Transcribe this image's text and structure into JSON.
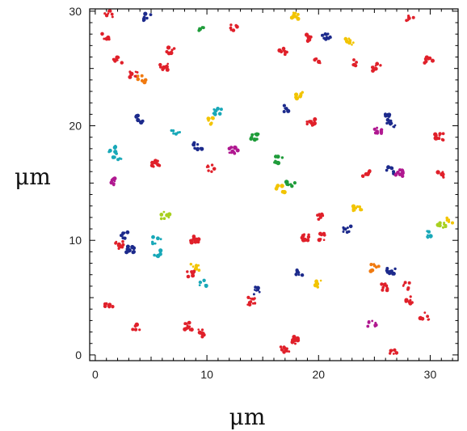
{
  "chart_data": {
    "type": "scatter",
    "title": "",
    "xlabel": "μm",
    "ylabel": "μm",
    "xlim": [
      -0.5,
      32.5
    ],
    "ylim": [
      -0.5,
      30.2
    ],
    "xticks": [
      0,
      10,
      20,
      30
    ],
    "yticks": [
      0,
      10,
      20,
      30
    ],
    "grid": false,
    "legend": "none",
    "colors": [
      "#e0202a",
      "#1c2a8c",
      "#f2c400",
      "#1f9c3a",
      "#b01890",
      "#18a8b8",
      "#f07a10",
      "#a8d020"
    ],
    "clusters": [
      {
        "x": 1.2,
        "y": 29.8,
        "c": 0
      },
      {
        "x": 4.6,
        "y": 29.5,
        "c": 1
      },
      {
        "x": 17.8,
        "y": 29.6,
        "c": 2
      },
      {
        "x": 28.2,
        "y": 29.5,
        "c": 0
      },
      {
        "x": 1.0,
        "y": 27.8,
        "c": 0
      },
      {
        "x": 9.6,
        "y": 28.3,
        "c": 3
      },
      {
        "x": 12.5,
        "y": 28.6,
        "c": 0
      },
      {
        "x": 19.0,
        "y": 27.7,
        "c": 0
      },
      {
        "x": 20.7,
        "y": 27.8,
        "c": 1
      },
      {
        "x": 22.8,
        "y": 27.3,
        "c": 2
      },
      {
        "x": 6.7,
        "y": 26.6,
        "c": 0
      },
      {
        "x": 16.8,
        "y": 26.5,
        "c": 0
      },
      {
        "x": 2.0,
        "y": 25.7,
        "c": 0
      },
      {
        "x": 6.2,
        "y": 25.2,
        "c": 0
      },
      {
        "x": 20.0,
        "y": 25.6,
        "c": 0
      },
      {
        "x": 23.3,
        "y": 25.5,
        "c": 0
      },
      {
        "x": 25.2,
        "y": 25.1,
        "c": 0
      },
      {
        "x": 29.9,
        "y": 25.8,
        "c": 0
      },
      {
        "x": 3.5,
        "y": 24.4,
        "c": 0
      },
      {
        "x": 4.2,
        "y": 24.1,
        "c": 6
      },
      {
        "x": 18.2,
        "y": 22.6,
        "c": 2
      },
      {
        "x": 10.9,
        "y": 21.2,
        "c": 5
      },
      {
        "x": 17.2,
        "y": 21.5,
        "c": 1
      },
      {
        "x": 26.1,
        "y": 21.1,
        "c": 1
      },
      {
        "x": 4.0,
        "y": 20.6,
        "c": 1
      },
      {
        "x": 10.4,
        "y": 20.4,
        "c": 2
      },
      {
        "x": 19.3,
        "y": 20.3,
        "c": 0
      },
      {
        "x": 25.4,
        "y": 19.6,
        "c": 4
      },
      {
        "x": 26.5,
        "y": 20.2,
        "c": 1
      },
      {
        "x": 7.2,
        "y": 19.4,
        "c": 5
      },
      {
        "x": 14.3,
        "y": 19.1,
        "c": 3
      },
      {
        "x": 30.8,
        "y": 19.0,
        "c": 0
      },
      {
        "x": 9.2,
        "y": 18.2,
        "c": 1
      },
      {
        "x": 12.4,
        "y": 17.9,
        "c": 4
      },
      {
        "x": 1.6,
        "y": 18.0,
        "c": 5
      },
      {
        "x": 2.0,
        "y": 17.3,
        "c": 5
      },
      {
        "x": 16.4,
        "y": 17.0,
        "c": 3
      },
      {
        "x": 5.4,
        "y": 16.7,
        "c": 0
      },
      {
        "x": 10.4,
        "y": 16.3,
        "c": 0
      },
      {
        "x": 24.2,
        "y": 15.9,
        "c": 0
      },
      {
        "x": 26.5,
        "y": 16.1,
        "c": 1
      },
      {
        "x": 27.3,
        "y": 15.9,
        "c": 4
      },
      {
        "x": 31.0,
        "y": 15.8,
        "c": 0
      },
      {
        "x": 1.8,
        "y": 15.1,
        "c": 4
      },
      {
        "x": 17.5,
        "y": 14.8,
        "c": 3
      },
      {
        "x": 16.6,
        "y": 14.5,
        "c": 2
      },
      {
        "x": 23.5,
        "y": 12.8,
        "c": 2
      },
      {
        "x": 6.3,
        "y": 12.2,
        "c": 7
      },
      {
        "x": 20.2,
        "y": 12.1,
        "c": 0
      },
      {
        "x": 31.0,
        "y": 11.3,
        "c": 7
      },
      {
        "x": 31.6,
        "y": 11.8,
        "c": 2
      },
      {
        "x": 22.5,
        "y": 11.0,
        "c": 1
      },
      {
        "x": 29.7,
        "y": 10.5,
        "c": 5
      },
      {
        "x": 2.5,
        "y": 10.4,
        "c": 1
      },
      {
        "x": 5.5,
        "y": 10.0,
        "c": 5
      },
      {
        "x": 8.9,
        "y": 10.1,
        "c": 0
      },
      {
        "x": 18.9,
        "y": 10.2,
        "c": 0
      },
      {
        "x": 20.4,
        "y": 10.3,
        "c": 0
      },
      {
        "x": 2.2,
        "y": 9.6,
        "c": 0
      },
      {
        "x": 3.1,
        "y": 9.2,
        "c": 1
      },
      {
        "x": 5.5,
        "y": 8.8,
        "c": 5
      },
      {
        "x": 8.9,
        "y": 7.6,
        "c": 2
      },
      {
        "x": 8.5,
        "y": 7.0,
        "c": 0
      },
      {
        "x": 9.6,
        "y": 6.3,
        "c": 5
      },
      {
        "x": 18.3,
        "y": 7.1,
        "c": 1
      },
      {
        "x": 25.0,
        "y": 7.6,
        "c": 6
      },
      {
        "x": 26.5,
        "y": 7.3,
        "c": 1
      },
      {
        "x": 27.8,
        "y": 6.0,
        "c": 0
      },
      {
        "x": 20.1,
        "y": 6.2,
        "c": 2
      },
      {
        "x": 14.4,
        "y": 5.6,
        "c": 1
      },
      {
        "x": 14.0,
        "y": 4.7,
        "c": 0
      },
      {
        "x": 25.9,
        "y": 5.9,
        "c": 0
      },
      {
        "x": 28.0,
        "y": 4.8,
        "c": 0
      },
      {
        "x": 1.2,
        "y": 4.4,
        "c": 0
      },
      {
        "x": 24.8,
        "y": 2.8,
        "c": 4
      },
      {
        "x": 29.5,
        "y": 3.4,
        "c": 0
      },
      {
        "x": 8.4,
        "y": 2.5,
        "c": 0
      },
      {
        "x": 9.5,
        "y": 1.9,
        "c": 0
      },
      {
        "x": 3.6,
        "y": 2.4,
        "c": 0
      },
      {
        "x": 17.8,
        "y": 1.3,
        "c": 0
      },
      {
        "x": 17.0,
        "y": 0.5,
        "c": 0
      },
      {
        "x": 26.7,
        "y": 0.4,
        "c": 0
      }
    ]
  }
}
